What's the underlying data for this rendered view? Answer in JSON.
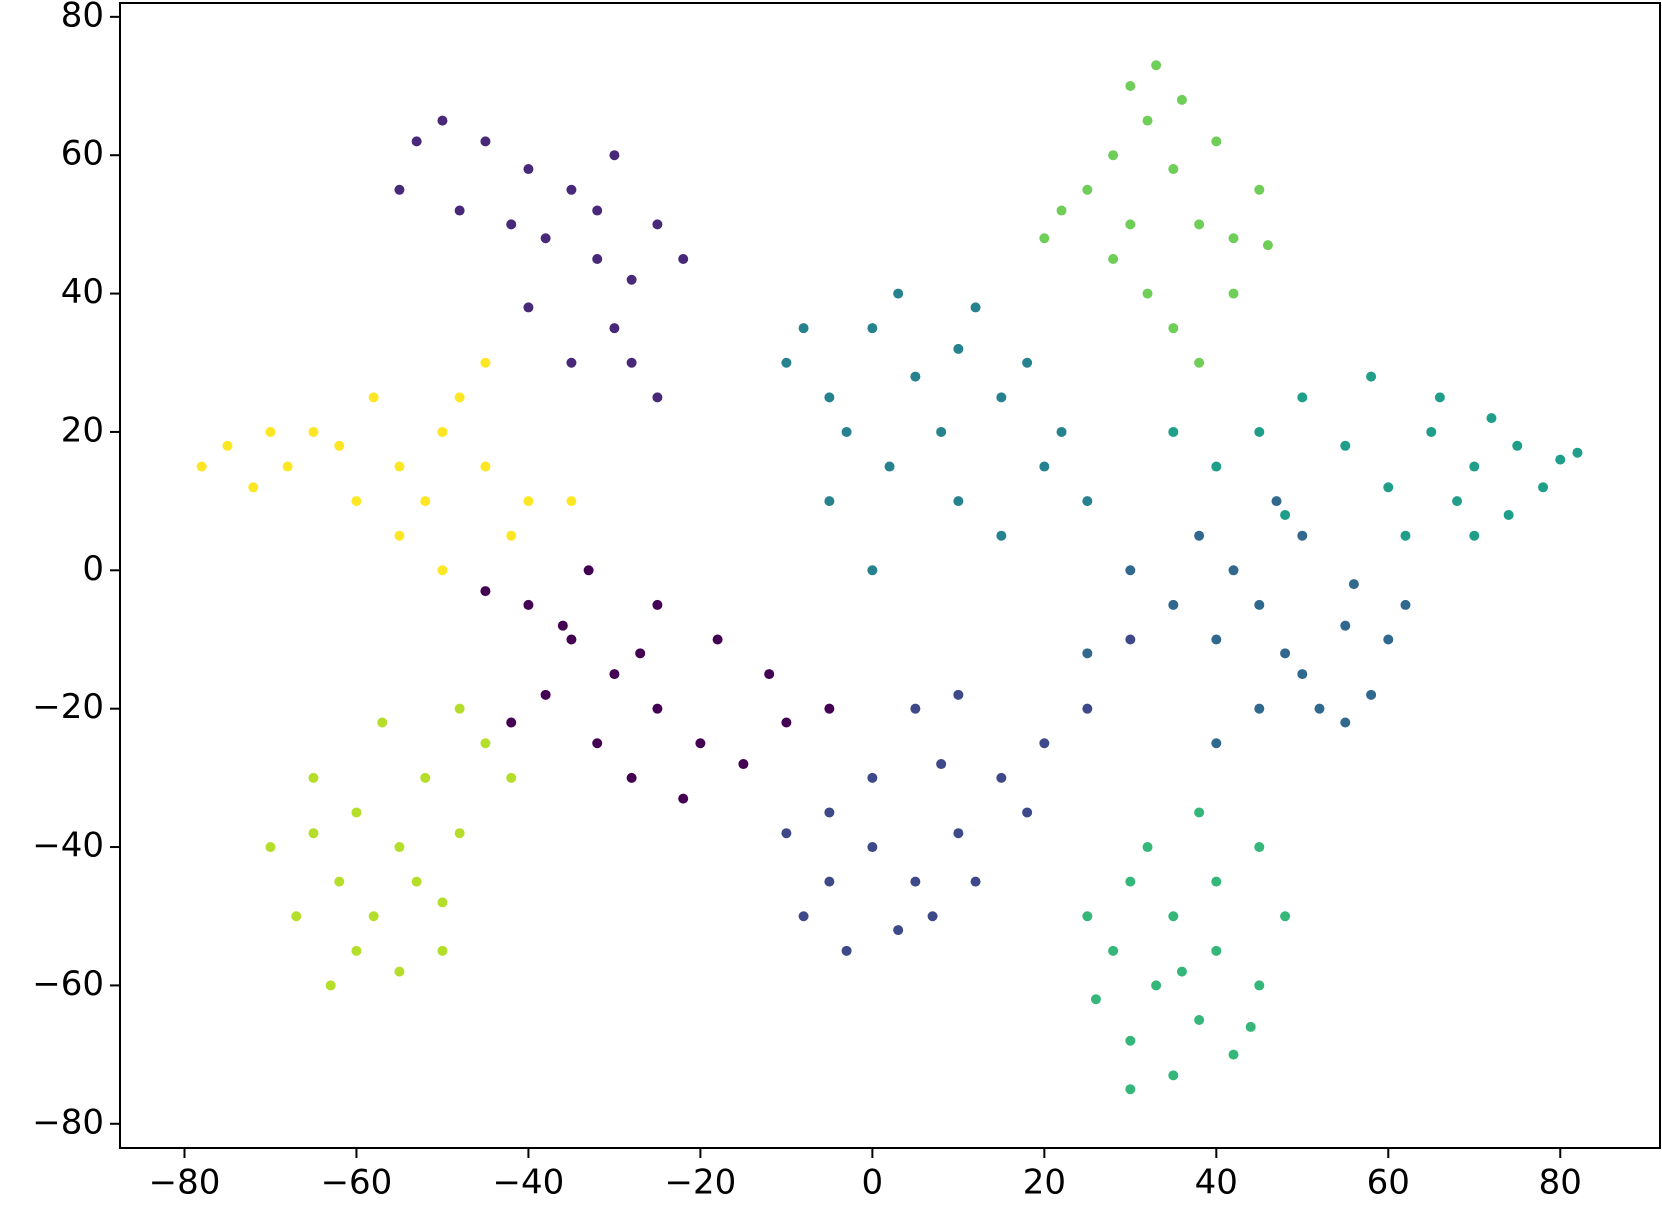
{
  "chart_data": {
    "type": "scatter",
    "xlim": [
      -87.5,
      91.6
    ],
    "ylim": [
      -83.5,
      82
    ],
    "xticks": [
      {
        "value": -80,
        "label": "−80"
      },
      {
        "value": -60,
        "label": "−60"
      },
      {
        "value": -40,
        "label": "−40"
      },
      {
        "value": -20,
        "label": "−20"
      },
      0,
      20,
      40,
      60,
      80
    ],
    "yticks": [
      {
        "value": -80,
        "label": "−80"
      },
      {
        "value": -60,
        "label": "−60"
      },
      {
        "value": -40,
        "label": "−40"
      },
      {
        "value": -20,
        "label": "−20"
      },
      0,
      20,
      40,
      60,
      80
    ],
    "grid": false,
    "series": [
      {
        "color": "#440154",
        "x": [
          -40,
          -35,
          -30,
          -25,
          -20,
          -32,
          -28,
          -22,
          -15,
          -12,
          -18,
          -38,
          -42,
          -45,
          -33,
          -25,
          -10,
          -5,
          -27,
          -36
        ],
        "values": [
          -5,
          -10,
          -15,
          -20,
          -25,
          -25,
          -30,
          -33,
          -28,
          -15,
          -10,
          -18,
          -22,
          -3,
          0,
          -5,
          -22,
          -20,
          -12,
          -8
        ]
      },
      {
        "color": "#482878",
        "x": [
          -55,
          -50,
          -45,
          -40,
          -35,
          -30,
          -38,
          -32,
          -28,
          -25,
          -22,
          -30,
          -35,
          -48,
          -42,
          -28,
          -25,
          -40,
          -53,
          -32
        ],
        "values": [
          55,
          65,
          62,
          58,
          55,
          60,
          48,
          45,
          42,
          50,
          45,
          35,
          30,
          52,
          50,
          30,
          25,
          38,
          62,
          52
        ]
      },
      {
        "color": "#3e4989",
        "x": [
          -5,
          0,
          5,
          -8,
          -3,
          3,
          10,
          15,
          8,
          0,
          -5,
          12,
          18,
          20,
          25,
          10,
          5,
          30,
          -10,
          7
        ],
        "values": [
          -35,
          -40,
          -45,
          -50,
          -55,
          -52,
          -38,
          -30,
          -28,
          -30,
          -45,
          -45,
          -35,
          -25,
          -20,
          -18,
          -20,
          -10,
          -38,
          -50
        ]
      },
      {
        "color": "#31688e",
        "x": [
          40,
          45,
          50,
          55,
          58,
          52,
          48,
          42,
          35,
          60,
          56,
          45,
          30,
          38,
          62,
          50,
          25,
          40,
          55,
          47
        ],
        "values": [
          -10,
          -5,
          -15,
          -8,
          -18,
          -20,
          -12,
          0,
          -5,
          -10,
          -2,
          -20,
          0,
          5,
          -5,
          5,
          -12,
          -25,
          -22,
          10
        ]
      },
      {
        "color": "#26828e",
        "x": [
          -10,
          -5,
          0,
          5,
          10,
          15,
          8,
          2,
          -3,
          12,
          18,
          -8,
          3,
          20,
          25,
          10,
          -5,
          15,
          22,
          0
        ],
        "values": [
          30,
          25,
          35,
          28,
          32,
          25,
          20,
          15,
          20,
          38,
          30,
          35,
          40,
          15,
          10,
          10,
          10,
          5,
          20,
          0
        ]
      },
      {
        "color": "#1f9e89",
        "x": [
          65,
          70,
          75,
          80,
          72,
          68,
          60,
          62,
          78,
          70,
          55,
          50,
          45,
          58,
          66,
          74,
          40,
          48,
          35,
          82
        ],
        "values": [
          20,
          15,
          18,
          16,
          22,
          10,
          12,
          5,
          12,
          5,
          18,
          25,
          20,
          28,
          25,
          8,
          15,
          8,
          20,
          17
        ]
      },
      {
        "color": "#35b779",
        "x": [
          30,
          35,
          40,
          33,
          38,
          30,
          35,
          42,
          45,
          28,
          25,
          40,
          45,
          48,
          32,
          36,
          26,
          44,
          38,
          30
        ],
        "values": [
          -45,
          -50,
          -55,
          -60,
          -65,
          -68,
          -73,
          -70,
          -60,
          -55,
          -50,
          -45,
          -40,
          -50,
          -40,
          -58,
          -62,
          -66,
          -35,
          -75
        ]
      },
      {
        "color": "#6ece58",
        "x": [
          30,
          32,
          28,
          35,
          25,
          38,
          42,
          30,
          22,
          36,
          40,
          45,
          32,
          35,
          38,
          28,
          20,
          42,
          33,
          46
        ],
        "values": [
          70,
          65,
          60,
          58,
          55,
          50,
          48,
          50,
          52,
          68,
          62,
          55,
          40,
          35,
          30,
          45,
          48,
          40,
          73,
          47
        ]
      },
      {
        "color": "#b5de2b",
        "x": [
          -55,
          -60,
          -65,
          -62,
          -58,
          -63,
          -55,
          -50,
          -48,
          -52,
          -45,
          -70,
          -67,
          -60,
          -53,
          -57,
          -48,
          -42,
          -65,
          -50
        ],
        "values": [
          -40,
          -35,
          -30,
          -45,
          -50,
          -60,
          -58,
          -48,
          -38,
          -30,
          -25,
          -40,
          -50,
          -55,
          -45,
          -22,
          -20,
          -30,
          -38,
          -55
        ]
      },
      {
        "color": "#fde725",
        "x": [
          -78,
          -75,
          -72,
          -68,
          -65,
          -60,
          -62,
          -55,
          -50,
          -52,
          -48,
          -45,
          -40,
          -42,
          -55,
          -70,
          -58,
          -45,
          -35,
          -50
        ],
        "values": [
          15,
          18,
          12,
          15,
          20,
          10,
          18,
          15,
          20,
          10,
          25,
          15,
          10,
          5,
          5,
          20,
          25,
          30,
          10,
          0
        ]
      }
    ]
  }
}
